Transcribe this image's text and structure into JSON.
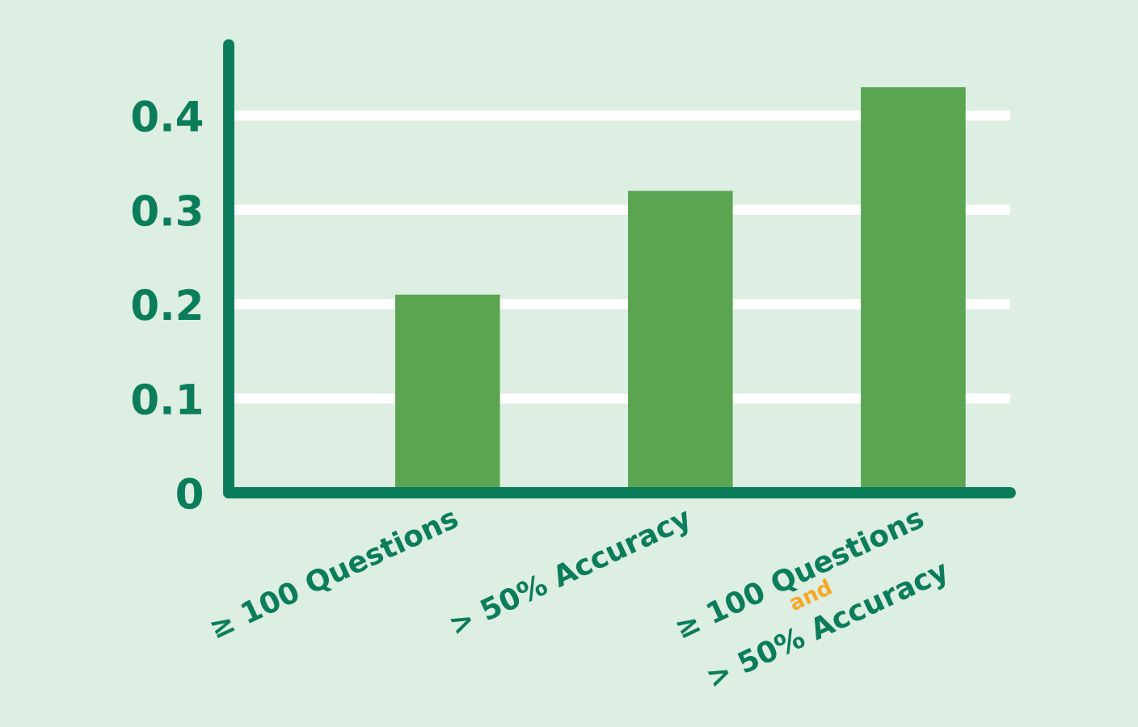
{
  "chart_data": {
    "type": "bar",
    "categories": [
      "≥ 100 Questions",
      "> 50% Accuracy",
      "≥ 100 Questions\nand\n> 50% Accuracy"
    ],
    "values": [
      0.21,
      0.32,
      0.43
    ],
    "color": "#5ba552",
    "ylim": [
      0,
      0.475
    ],
    "yticks": [
      0,
      0.1,
      0.2,
      0.3,
      0.4
    ],
    "grid": "y"
  }
}
